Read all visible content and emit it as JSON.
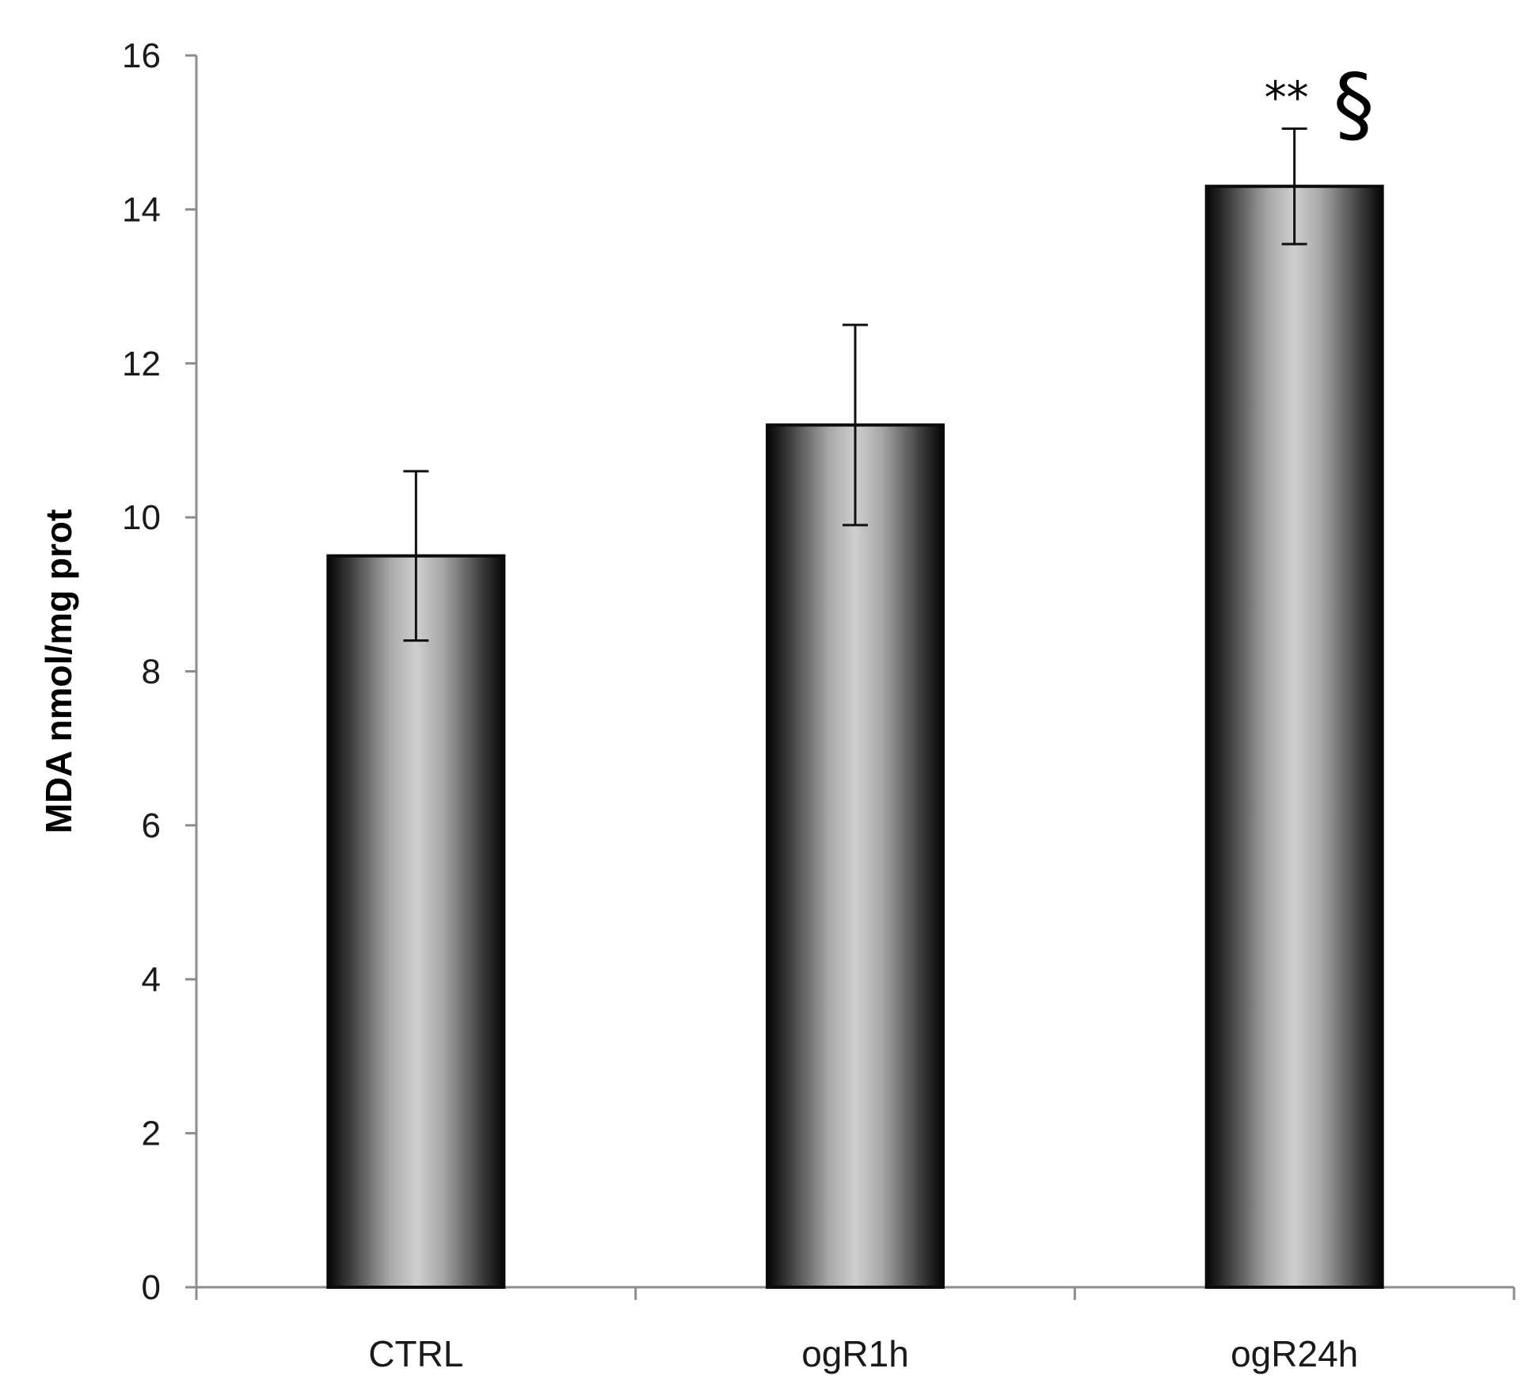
{
  "chart_data": {
    "type": "bar",
    "title": "",
    "xlabel": "",
    "ylabel": "MDA  nmol/mg prot",
    "ylim": [
      0,
      16
    ],
    "yticks": [
      0,
      2,
      4,
      6,
      8,
      10,
      12,
      14,
      16
    ],
    "grid": false,
    "legend": "none",
    "categories": [
      "CTRL",
      "ogR1h",
      "ogR24h"
    ],
    "values": [
      9.5,
      11.2,
      14.3
    ],
    "errors": [
      1.1,
      1.3,
      0.75
    ],
    "annotations": [
      {
        "category": "ogR24h",
        "stars": "**",
        "symbol": "§"
      }
    ],
    "colors": {
      "bar_edge": "#0a0a0a",
      "bar_center": "#cfcfcf",
      "axis": "#8c8c8c"
    }
  }
}
